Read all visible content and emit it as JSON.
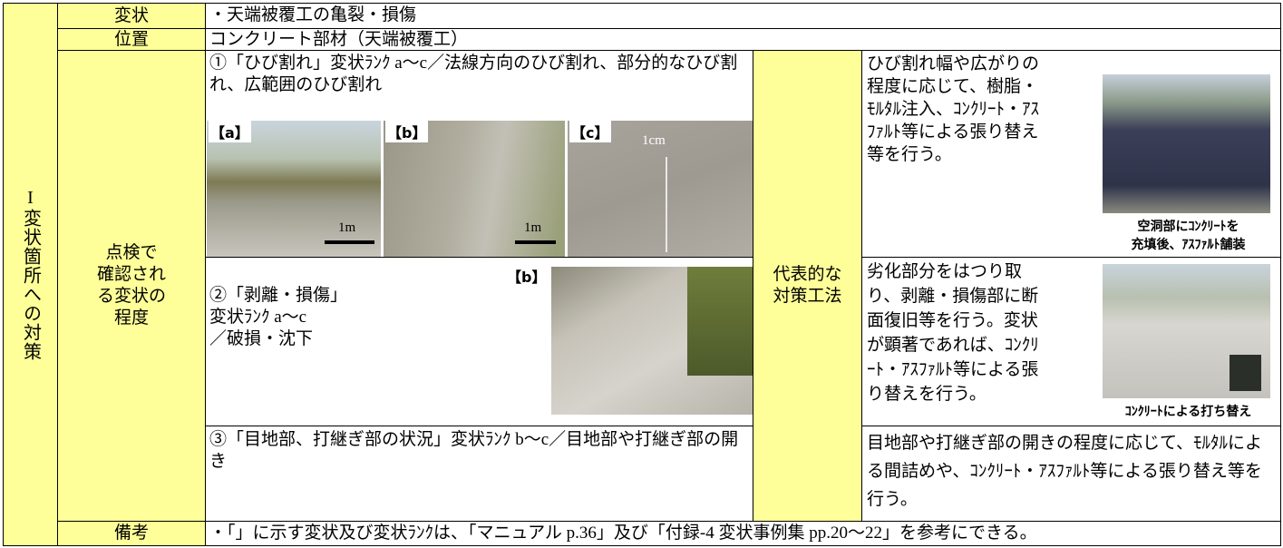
{
  "side_label": "I変状箇所への対策",
  "rows": [
    {
      "label": "変状",
      "text": "・天端被覆工の亀裂・損傷"
    },
    {
      "label": "位置",
      "text": "コンクリート部材（天端被覆工）"
    }
  ],
  "inspection": {
    "label_lines": [
      "点検で",
      "確認され",
      "る変状の",
      "程度"
    ],
    "items": [
      {
        "text": "①「ひび割れ」変状ﾗﾝｸ a～c／法線方向のひび割れ、部分的なひび割れ、広範囲のひび割れ",
        "photos": [
          {
            "tag": "【a】",
            "scale": "1m"
          },
          {
            "tag": "【b】",
            "scale": "1m"
          },
          {
            "tag": "【c】",
            "scale": "1cm"
          }
        ]
      },
      {
        "text_lines": [
          "②「剥離・損傷」",
          "変状ﾗﾝｸ a～c",
          "／破損・沈下"
        ],
        "photo_tag": "【b】"
      },
      {
        "text": "③「目地部、打継ぎ部の状況」変状ﾗﾝｸ b～c／目地部や打継ぎ部の開き"
      }
    ]
  },
  "countermeasure": {
    "label_lines": [
      "代表的な",
      "対策工法"
    ],
    "items": [
      {
        "text": "ひび割れ幅や広がりの程度に応じて、樹脂・ﾓﾙﾀﾙ注入、ｺﾝｸﾘｰﾄ・ｱｽﾌｧﾙﾄ等による張り替え等を行う。",
        "caption_lines": [
          "空洞部にｺﾝｸﾘｰﾄを",
          "充填後、ｱｽﾌｧﾙﾄ舗装"
        ]
      },
      {
        "text": "劣化部分をはつり取り、剥離・損傷部に断面復旧等を行う。変状が顕著であれば、ｺﾝｸﾘｰﾄ・ｱｽﾌｧﾙﾄ等による張り替えを行う。",
        "caption_lines": [
          "ｺﾝｸﾘｰﾄによる打ち替え"
        ]
      },
      {
        "text": "目地部や打継ぎ部の開きの程度に応じて、ﾓﾙﾀﾙによる間詰めや、ｺﾝｸﾘｰﾄ・ｱｽﾌｧﾙﾄ等による張り替え等を行う。"
      }
    ]
  },
  "remarks": {
    "label": "備考",
    "text": "・「」に示す変状及び変状ﾗﾝｸは、「マニュアル p.36」及び「付録-4 変状事例集 pp.20～22」を参考にできる。"
  }
}
